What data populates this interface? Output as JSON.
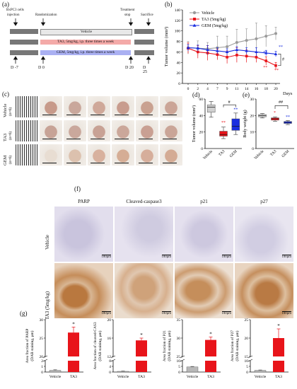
{
  "panel_a": {
    "label": "(a)",
    "event_cells": "BxPC3 cells",
    "event_injection": "injection",
    "event_random": "Randomization",
    "event_treat_1": "Treatment",
    "event_treat_2": "stop",
    "event_sacrifice": "Sacrifice",
    "arms": [
      "Vehicle",
      "TA3, 5mg/kg, i.p. three times a week",
      "GEM, 5mg/kg, i.p. three times a week"
    ],
    "days": [
      "D -7",
      "D 0",
      "D 20",
      "D 25"
    ]
  },
  "panel_b": {
    "label": "(b)"
  },
  "panel_c": {
    "label": "(c)",
    "rows": [
      {
        "name": "Vehicle",
        "n": "(n=6)"
      },
      {
        "name": "TA3",
        "n": "(n=6)"
      },
      {
        "name": "GEM",
        "n": "(n=6)"
      }
    ]
  },
  "panel_d": {
    "label": "(d)"
  },
  "panel_e": {
    "label": "(e)"
  },
  "panel_f": {
    "label": "(f)",
    "columns": [
      "PARP",
      "Cleaved-caspase3",
      "p21",
      "p27"
    ],
    "rows": [
      "Vehicle",
      "TA3 (5mg/kg)"
    ],
    "scale_bar": "100μm"
  },
  "panel_g": {
    "label": "(g)"
  },
  "colors": {
    "vehicle": "#9a9a9a",
    "ta3": "#e8141a",
    "gem": "#1a2ee0",
    "ihc_neg": "#d9d6e6",
    "ihc_pos": "#c08a55"
  },
  "chart_data": [
    {
      "id": "b",
      "type": "line",
      "ylabel": "Tumor volume (mm³)",
      "xlabel": "Days",
      "x": [
        0,
        2,
        4,
        7,
        9,
        11,
        14,
        16,
        18,
        20
      ],
      "ylim": [
        0,
        140
      ],
      "yticks": [
        0,
        20,
        40,
        60,
        80,
        100,
        120,
        140
      ],
      "series": [
        {
          "name": "Vehicle",
          "values": [
            68,
            67,
            66,
            68,
            70,
            78,
            82,
            85,
            90,
            95
          ],
          "err": [
            12,
            14,
            12,
            22,
            20,
            25,
            22,
            30,
            20,
            12
          ]
        },
        {
          "name": "TA3 (5mg/kg)",
          "values": [
            67,
            60,
            58,
            55,
            50,
            54,
            52,
            50,
            43,
            34
          ],
          "err": [
            10,
            12,
            14,
            10,
            12,
            14,
            12,
            10,
            8,
            6
          ]
        },
        {
          "name": "GEM (5mg/kg)",
          "values": [
            68,
            67,
            64,
            62,
            60,
            64,
            62,
            60,
            58,
            56
          ],
          "err": [
            6,
            6,
            8,
            6,
            6,
            6,
            6,
            8,
            5,
            5
          ]
        }
      ],
      "annotations": [
        "**",
        "**",
        "**",
        "**",
        "#"
      ]
    },
    {
      "id": "d",
      "type": "box",
      "ylabel": "Tumor volume (mm³)",
      "categories": [
        "Vehicle",
        "TA3",
        "GEM"
      ],
      "ylim": [
        0,
        60
      ],
      "yticks": [
        0,
        20,
        40,
        60
      ],
      "boxes": [
        {
          "min": 38,
          "q1": 44,
          "median": 50,
          "q3": 53,
          "max": 57
        },
        {
          "min": 12,
          "q1": 15,
          "median": 17,
          "q3": 21,
          "max": 26
        },
        {
          "min": 17,
          "q1": 22,
          "median": 27,
          "q3": 36,
          "max": 43
        }
      ],
      "annotations": [
        "**",
        "**",
        "#"
      ]
    },
    {
      "id": "e",
      "type": "box",
      "ylabel": "Body weight (g)",
      "categories": [
        "Vehicle",
        "TA3",
        "GEM"
      ],
      "ylim": [
        0,
        30
      ],
      "yticks": [
        0,
        10,
        20,
        30
      ],
      "boxes": [
        {
          "min": 18.5,
          "q1": 19.2,
          "median": 20,
          "q3": 20.6,
          "max": 21.2
        },
        {
          "min": 16.5,
          "q1": 17.2,
          "median": 18,
          "q3": 18.6,
          "max": 19.2
        },
        {
          "min": 14.5,
          "q1": 15.2,
          "median": 15.8,
          "q3": 16.4,
          "max": 17
        }
      ],
      "annotations": [
        "*",
        "**",
        "##"
      ]
    },
    {
      "id": "g1",
      "type": "bar",
      "ylabel": "Area fraction of PARP (DAB staining, μm)",
      "categories": [
        "Vehicle",
        "TA3"
      ],
      "values": [
        0.3,
        26.5
      ],
      "err": [
        0.1,
        1.5
      ],
      "yticks": [
        0,
        1,
        2,
        20,
        25,
        30
      ],
      "annotation": "*"
    },
    {
      "id": "g2",
      "type": "bar",
      "ylabel": "Area fraction of cleaved-CAS3 (DAB staining, μm)",
      "categories": [
        "Vehicle",
        "TA3"
      ],
      "values": [
        0.5,
        15.5
      ],
      "err": [
        0.2,
        0.5
      ],
      "yticks": [
        0,
        4,
        8,
        12,
        16,
        20
      ],
      "annotation": "*"
    },
    {
      "id": "g3",
      "type": "bar",
      "ylabel": "Area fraction of P21 (DAB staining, μm)",
      "categories": [
        "Vehicle",
        "TA3"
      ],
      "values": [
        4.5,
        29.5
      ],
      "err": [
        0.4,
        0.8
      ],
      "yticks": [
        0,
        5,
        10,
        25,
        30,
        35
      ],
      "annotation": "*"
    },
    {
      "id": "g4",
      "type": "bar",
      "ylabel": "Area fraction of P27 (DAB staining, μm)",
      "categories": [
        "Vehicle",
        "TA3"
      ],
      "values": [
        1.5,
        20
      ],
      "err": [
        0.3,
        2.5
      ],
      "yticks": [
        0,
        5,
        10,
        15,
        20,
        25
      ],
      "annotation": "*"
    }
  ]
}
